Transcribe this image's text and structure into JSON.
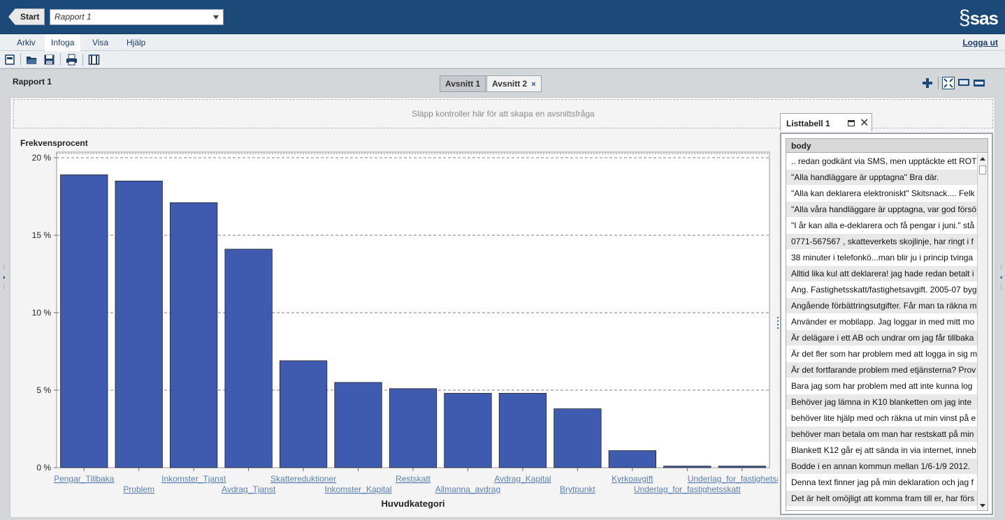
{
  "topbar": {
    "start_label": "Start",
    "report_select_value": "Rapport 1",
    "logo_text": "sas"
  },
  "menu": {
    "items": [
      "Arkiv",
      "Infoga",
      "Visa",
      "Hjälp"
    ],
    "active": "Infoga",
    "logout_label": "Logga ut"
  },
  "toolbar": {
    "icons": [
      "new-report-icon",
      "open-folder-icon",
      "save-icon",
      "print-icon",
      "layout-icon"
    ]
  },
  "report": {
    "title": "Rapport 1",
    "tabs": [
      {
        "label": "Avsnitt 1",
        "active": false
      },
      {
        "label": "Avsnitt 2",
        "active": true,
        "close": "×"
      }
    ],
    "right_tool_icons": [
      "add-icon",
      "fit-icon",
      "screen-icon",
      "wide-icon"
    ],
    "dropzone_text": "Släpp kontroller här för att skapa en avsnittsfråga"
  },
  "chart_data": {
    "type": "bar",
    "title": "Frekvensprocent",
    "xlabel": "Huvudkategori",
    "ylabel": "Frekvensprocent",
    "ylim": [
      0,
      20
    ],
    "yticks": [
      0,
      5,
      10,
      15,
      20
    ],
    "ytick_labels": [
      "0 %",
      "5 %",
      "10 %",
      "15 %",
      "20 %"
    ],
    "categories": [
      "Pengar_Tillbaka",
      "Problem",
      "Inkomster_Tjanst",
      "Avdrag_Tjanst",
      "Skattereduktioner",
      "Inkomster_Kapital",
      "Restskatt",
      "Allmanna_avdrag",
      "Avdrag_Kapital",
      "Brytpunkt",
      "Kyrkoavgift",
      "Underlag_for_fastighetsskatt",
      "Underlag_for_fastighetsavgift"
    ],
    "values": [
      18.9,
      18.5,
      17.1,
      14.1,
      6.9,
      5.5,
      5.1,
      4.8,
      4.8,
      3.8,
      1.1,
      0.1,
      0.1
    ],
    "grid": "dashed horizontal",
    "bar_color": "#3f5bb0",
    "label_color": "#5a7fb5"
  },
  "list": {
    "title": "Listtabell 1",
    "column": "body",
    "rows": [
      ".. redan godkänt via SMS, men upptäckte ett ROT",
      "\"Alla handläggare är upptagna\" Bra där.",
      "\"Alla kan deklarera elektroniskt\" Skitsnack.... Felk",
      "\"Alla våra handläggare är upptagna, var god försö",
      "\"I år kan alla e-deklarera och få pengar i juni.\" stå",
      "0771-567567 , skatteverkets skojlinje, har ringt i f",
      "38 minuter i telefonkö...man blir ju i princip tvinga",
      "Alltid lika kul att deklarera! jag hade redan betalt i",
      "Ang. Fastighetsskatt/fastighetsavgift. 2005-07 byg",
      "Angående förbättringsutgifter. Får man ta räkna m",
      "Använder er mobilapp. Jag loggar in med mitt mo",
      "Är delägare i ett AB och undrar om jag får tillbaka",
      "Är det fler som har problem med att logga in sig m",
      "Är det fortfarande problem med etjänsterna? Prov",
      "Bara jag som har problem med att inte kunna log",
      "Behöver jag lämna in K10 blanketten om jag inte",
      "behöver lite hjälp med och räkna ut min vinst på e",
      "behöver man betala om man har restskatt på min",
      "Blankett K12 går ej att sända in via internet, inneb",
      "Bodde i en annan kommun mellan 1/6-1/9 2012.",
      "Denna text finner jag på min deklaration och jag f",
      "Det är helt omöjligt att komma fram till er, har förs"
    ]
  }
}
